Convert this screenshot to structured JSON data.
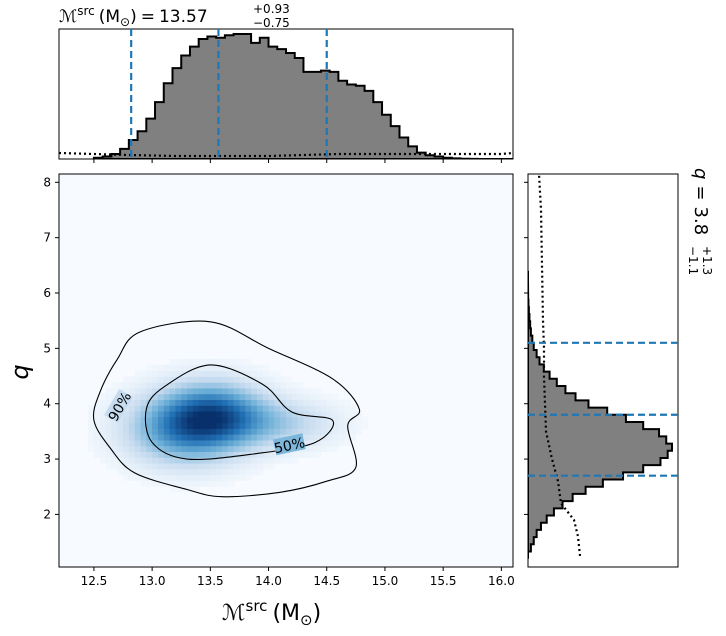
{
  "chart_data": {
    "type": "corner",
    "x": {
      "symbol": "ℳ",
      "sup": "src",
      "unit": "(M",
      "unit_sub": "⊙",
      "unit_close": ")",
      "median": 13.57,
      "plus": "+0.93",
      "minus": "−0.75",
      "lo": 12.82,
      "hi": 14.5,
      "lim": [
        12.2,
        16.1
      ],
      "ticks": [
        "12.5",
        "13.0",
        "13.5",
        "14.0",
        "14.5",
        "15.0",
        "15.5",
        "16.0"
      ],
      "posterior_hist": {
        "edges": [
          12.5,
          16.1
        ],
        "values": [
          1,
          2,
          4,
          8,
          15,
          22,
          32,
          45,
          60,
          72,
          82,
          89,
          95,
          97,
          96,
          98,
          99,
          99,
          92,
          96,
          89,
          87,
          84,
          80,
          69,
          69,
          70,
          69,
          62,
          59,
          58,
          54,
          45,
          35,
          26,
          17,
          10,
          5,
          3,
          2,
          1,
          0.5,
          0.2,
          0.1,
          0,
          0,
          0,
          0
        ]
      },
      "prior_trace": [
        [
          12.2,
          6
        ],
        [
          12.8,
          4
        ],
        [
          13.2,
          3
        ],
        [
          14.0,
          3
        ],
        [
          14.6,
          5
        ],
        [
          15.2,
          5
        ],
        [
          16.0,
          5
        ],
        [
          16.1,
          6
        ]
      ]
    },
    "y": {
      "symbol": "q",
      "median": 3.8,
      "plus": "+1.3",
      "minus": "−1.1",
      "lo": 2.7,
      "hi": 5.1,
      "lim": [
        1.05,
        8.15
      ],
      "ticks": [
        "2",
        "3",
        "4",
        "5",
        "6",
        "7",
        "8"
      ],
      "posterior_hist": {
        "edges": [
          1.2,
          6.4
        ],
        "values": [
          0,
          2,
          4,
          6,
          9,
          13,
          18,
          24,
          31,
          40,
          52,
          66,
          80,
          92,
          97,
          100,
          96,
          91,
          80,
          68,
          55,
          42,
          33,
          26,
          20,
          15,
          11,
          8,
          6,
          4,
          3,
          2,
          1.5,
          1,
          0.6,
          0.3,
          0.1,
          0.05,
          0,
          0
        ]
      },
      "prior_trace": [
        [
          1.25,
          52
        ],
        [
          1.6,
          50
        ],
        [
          1.9,
          46
        ],
        [
          2.2,
          33
        ],
        [
          2.6,
          30
        ],
        [
          3.0,
          24
        ],
        [
          3.5,
          18
        ],
        [
          4.0,
          17
        ],
        [
          4.5,
          16
        ],
        [
          5.0,
          16
        ],
        [
          5.5,
          15
        ],
        [
          6.5,
          14
        ],
        [
          7.5,
          13
        ],
        [
          8.15,
          11
        ]
      ]
    },
    "joint": {
      "colormap": "Blues",
      "peaks": [
        {
          "x": 13.28,
          "y": 3.55,
          "amp": 1.0,
          "sx": 0.35,
          "sy": 0.45
        },
        {
          "x": 13.55,
          "y": 3.85,
          "amp": 0.9,
          "sx": 0.3,
          "sy": 0.4
        },
        {
          "x": 14.1,
          "y": 3.65,
          "amp": 0.45,
          "sx": 0.35,
          "sy": 0.3
        }
      ],
      "contours": [
        {
          "label": "90%",
          "points": [
            [
              12.64,
              3.2
            ],
            [
              12.85,
              2.75
            ],
            [
              13.3,
              2.45
            ],
            [
              13.6,
              2.32
            ],
            [
              14.1,
              2.4
            ],
            [
              14.5,
              2.6
            ],
            [
              14.75,
              2.85
            ],
            [
              14.68,
              3.6
            ],
            [
              14.78,
              3.9
            ],
            [
              14.55,
              4.45
            ],
            [
              14.0,
              5.0
            ],
            [
              13.5,
              5.48
            ],
            [
              12.9,
              5.3
            ],
            [
              12.7,
              4.8
            ],
            [
              12.55,
              4.2
            ],
            [
              12.5,
              3.7
            ]
          ],
          "label_at": [
            12.72,
            3.95
          ]
        },
        {
          "label": "50%",
          "points": [
            [
              13.0,
              3.3
            ],
            [
              13.3,
              3.0
            ],
            [
              13.9,
              3.1
            ],
            [
              14.4,
              3.3
            ],
            [
              14.55,
              3.7
            ],
            [
              14.2,
              3.85
            ],
            [
              13.95,
              4.35
            ],
            [
              13.5,
              4.7
            ],
            [
              13.1,
              4.3
            ],
            [
              12.95,
              3.9
            ]
          ],
          "label_at": [
            14.18,
            3.25
          ]
        }
      ]
    }
  }
}
